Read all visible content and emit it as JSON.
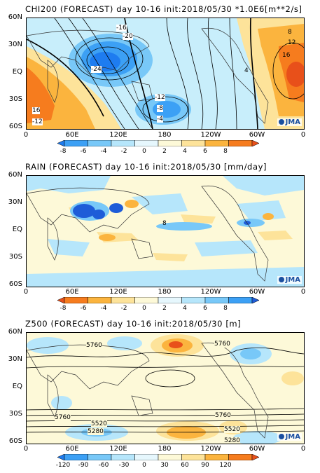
{
  "panels": [
    {
      "title": "CHI200 (FORECAST) day 10-16 init:2018/05/30   *1.0E6[m**2/s]",
      "lat_labels": [
        "60N",
        "30N",
        "EQ",
        "30S",
        "60S"
      ],
      "lon_labels": [
        "0",
        "60E",
        "120E",
        "180",
        "120W",
        "60W",
        "0"
      ],
      "colorbar": {
        "ticks": [
          "-8",
          "-6",
          "-4",
          "-2",
          "0",
          "2",
          "4",
          "6",
          "8"
        ],
        "colors": [
          "#1e7cf0",
          "#3ca0f5",
          "#78c8f8",
          "#b6e6fb",
          "#e6f7fd",
          "#fdf9d8",
          "#fde39a",
          "#fbb43e",
          "#f67c1e",
          "#e8501a"
        ]
      },
      "contour_labels": [
        "-16",
        "-20",
        "-24",
        "-12",
        "-8",
        "-4",
        "16",
        "-12",
        "8",
        "12",
        "16",
        "4"
      ],
      "logo": "JMA"
    },
    {
      "title": "RAIN (FORECAST) day 10-16 init:2018/05/30   [mm/day]",
      "lat_labels": [
        "60N",
        "30N",
        "EQ",
        "30S",
        "60S"
      ],
      "lon_labels": [
        "0",
        "60E",
        "120E",
        "180",
        "120W",
        "60W",
        "0"
      ],
      "colorbar": {
        "ticks": [
          "-8",
          "-6",
          "-4",
          "-2",
          "0",
          "2",
          "4",
          "6",
          "8"
        ],
        "colors": [
          "#e8501a",
          "#f67c1e",
          "#fbb43e",
          "#fde39a",
          "#fdf9d8",
          "#e6f7fd",
          "#b6e6fb",
          "#78c8f8",
          "#3ca0f5",
          "#1e5cd8"
        ]
      },
      "contour_labels": [
        "8"
      ],
      "logo": "JMA"
    },
    {
      "title": "Z500 (FORECAST) day 10-16 init:2018/05/30   [m]",
      "lat_labels": [
        "60N",
        "30N",
        "EQ",
        "30S",
        "60S"
      ],
      "lon_labels": [
        "0",
        "60E",
        "120E",
        "180",
        "120W",
        "60W",
        "0"
      ],
      "colorbar": {
        "ticks": [
          "-120",
          "-90",
          "-60",
          "-30",
          "0",
          "30",
          "60",
          "90",
          "120"
        ],
        "colors": [
          "#1e7cf0",
          "#3ca0f5",
          "#78c8f8",
          "#b6e6fb",
          "#e6f7fd",
          "#fdf9d8",
          "#fde39a",
          "#fbb43e",
          "#f67c1e",
          "#e8501a"
        ]
      },
      "contour_labels": [
        "5760",
        "5760",
        "5760",
        "5760",
        "5520",
        "5520",
        "5280",
        "5280"
      ],
      "logo": "JMA"
    }
  ]
}
